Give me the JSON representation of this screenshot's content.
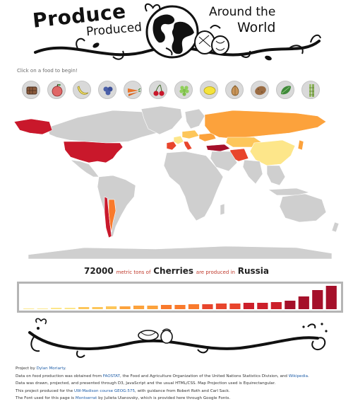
{
  "header": {
    "word_produce": "Produce",
    "word_produced": "Produced",
    "word_around": "Around the",
    "word_world": "World"
  },
  "instruction": "Click on a food to begin!",
  "foods": [
    {
      "icon": "chocolate-icon",
      "color": "#8b5a3c"
    },
    {
      "icon": "apple-icon",
      "color": "#e06666"
    },
    {
      "icon": "banana-icon",
      "color": "#f4e06b"
    },
    {
      "icon": "blueberry-icon",
      "color": "#4a5fa8"
    },
    {
      "icon": "carrot-icon",
      "color": "#e8742a"
    },
    {
      "icon": "cherry-icon",
      "color": "#c9182b"
    },
    {
      "icon": "grape-icon",
      "color": "#8fcf5a"
    },
    {
      "icon": "lemon-icon",
      "color": "#f5e33a"
    },
    {
      "icon": "onion-icon",
      "color": "#c9955a"
    },
    {
      "icon": "potato-icon",
      "color": "#9a6b42"
    },
    {
      "icon": "spinach-icon",
      "color": "#3f8a3a"
    },
    {
      "icon": "sugarcane-icon",
      "color": "#9bbf6a"
    }
  ],
  "colors": {
    "land": "#cfcfcf",
    "scale": [
      "#fde68a",
      "#fdc65a",
      "#fca23c",
      "#f97a2c",
      "#e8452c",
      "#cc1f2a",
      "#a5102a"
    ]
  },
  "caption": {
    "amount": "72000",
    "unit": "metric tons of",
    "food": "Cherries",
    "verb": "are produced in",
    "country": "Russia"
  },
  "chart_data": {
    "type": "bar",
    "values": [
      1,
      1,
      2,
      2,
      3,
      3,
      4,
      4,
      5,
      5,
      6,
      6,
      7,
      7,
      8,
      8,
      9,
      9,
      10,
      12,
      18,
      27,
      33
    ],
    "ylim": [
      0,
      34
    ],
    "grid": false
  },
  "credits": {
    "line1_prefix": "Project by",
    "line1_link": "Dylan Moriarty",
    "line1_suffix": ".",
    "line2_prefix": "Data on food production was obtained from",
    "line2_link1": "FAOSTAT",
    "line2_mid": ", the Food and Agriculture Organization of the United Nations Statistics Division, and",
    "line2_link2": "Wikipedia",
    "line2_suffix": ".",
    "line3": "Data was drawn, projected, and presented through D3, JavaScript and the usual HTML/CSS. Map Projection used is Equirectangular.",
    "line4_prefix": "This project produced for the",
    "line4_link": "UW-Madison course GEOG:575",
    "line4_suffix": ", with guidance from Robert Roth and Carl Sack.",
    "line5_prefix": "The Font used for this page is",
    "line5_link": "Montserrat",
    "line5_suffix": "by Julieta Ulanovsky, which is provided here through Google Fonts."
  }
}
